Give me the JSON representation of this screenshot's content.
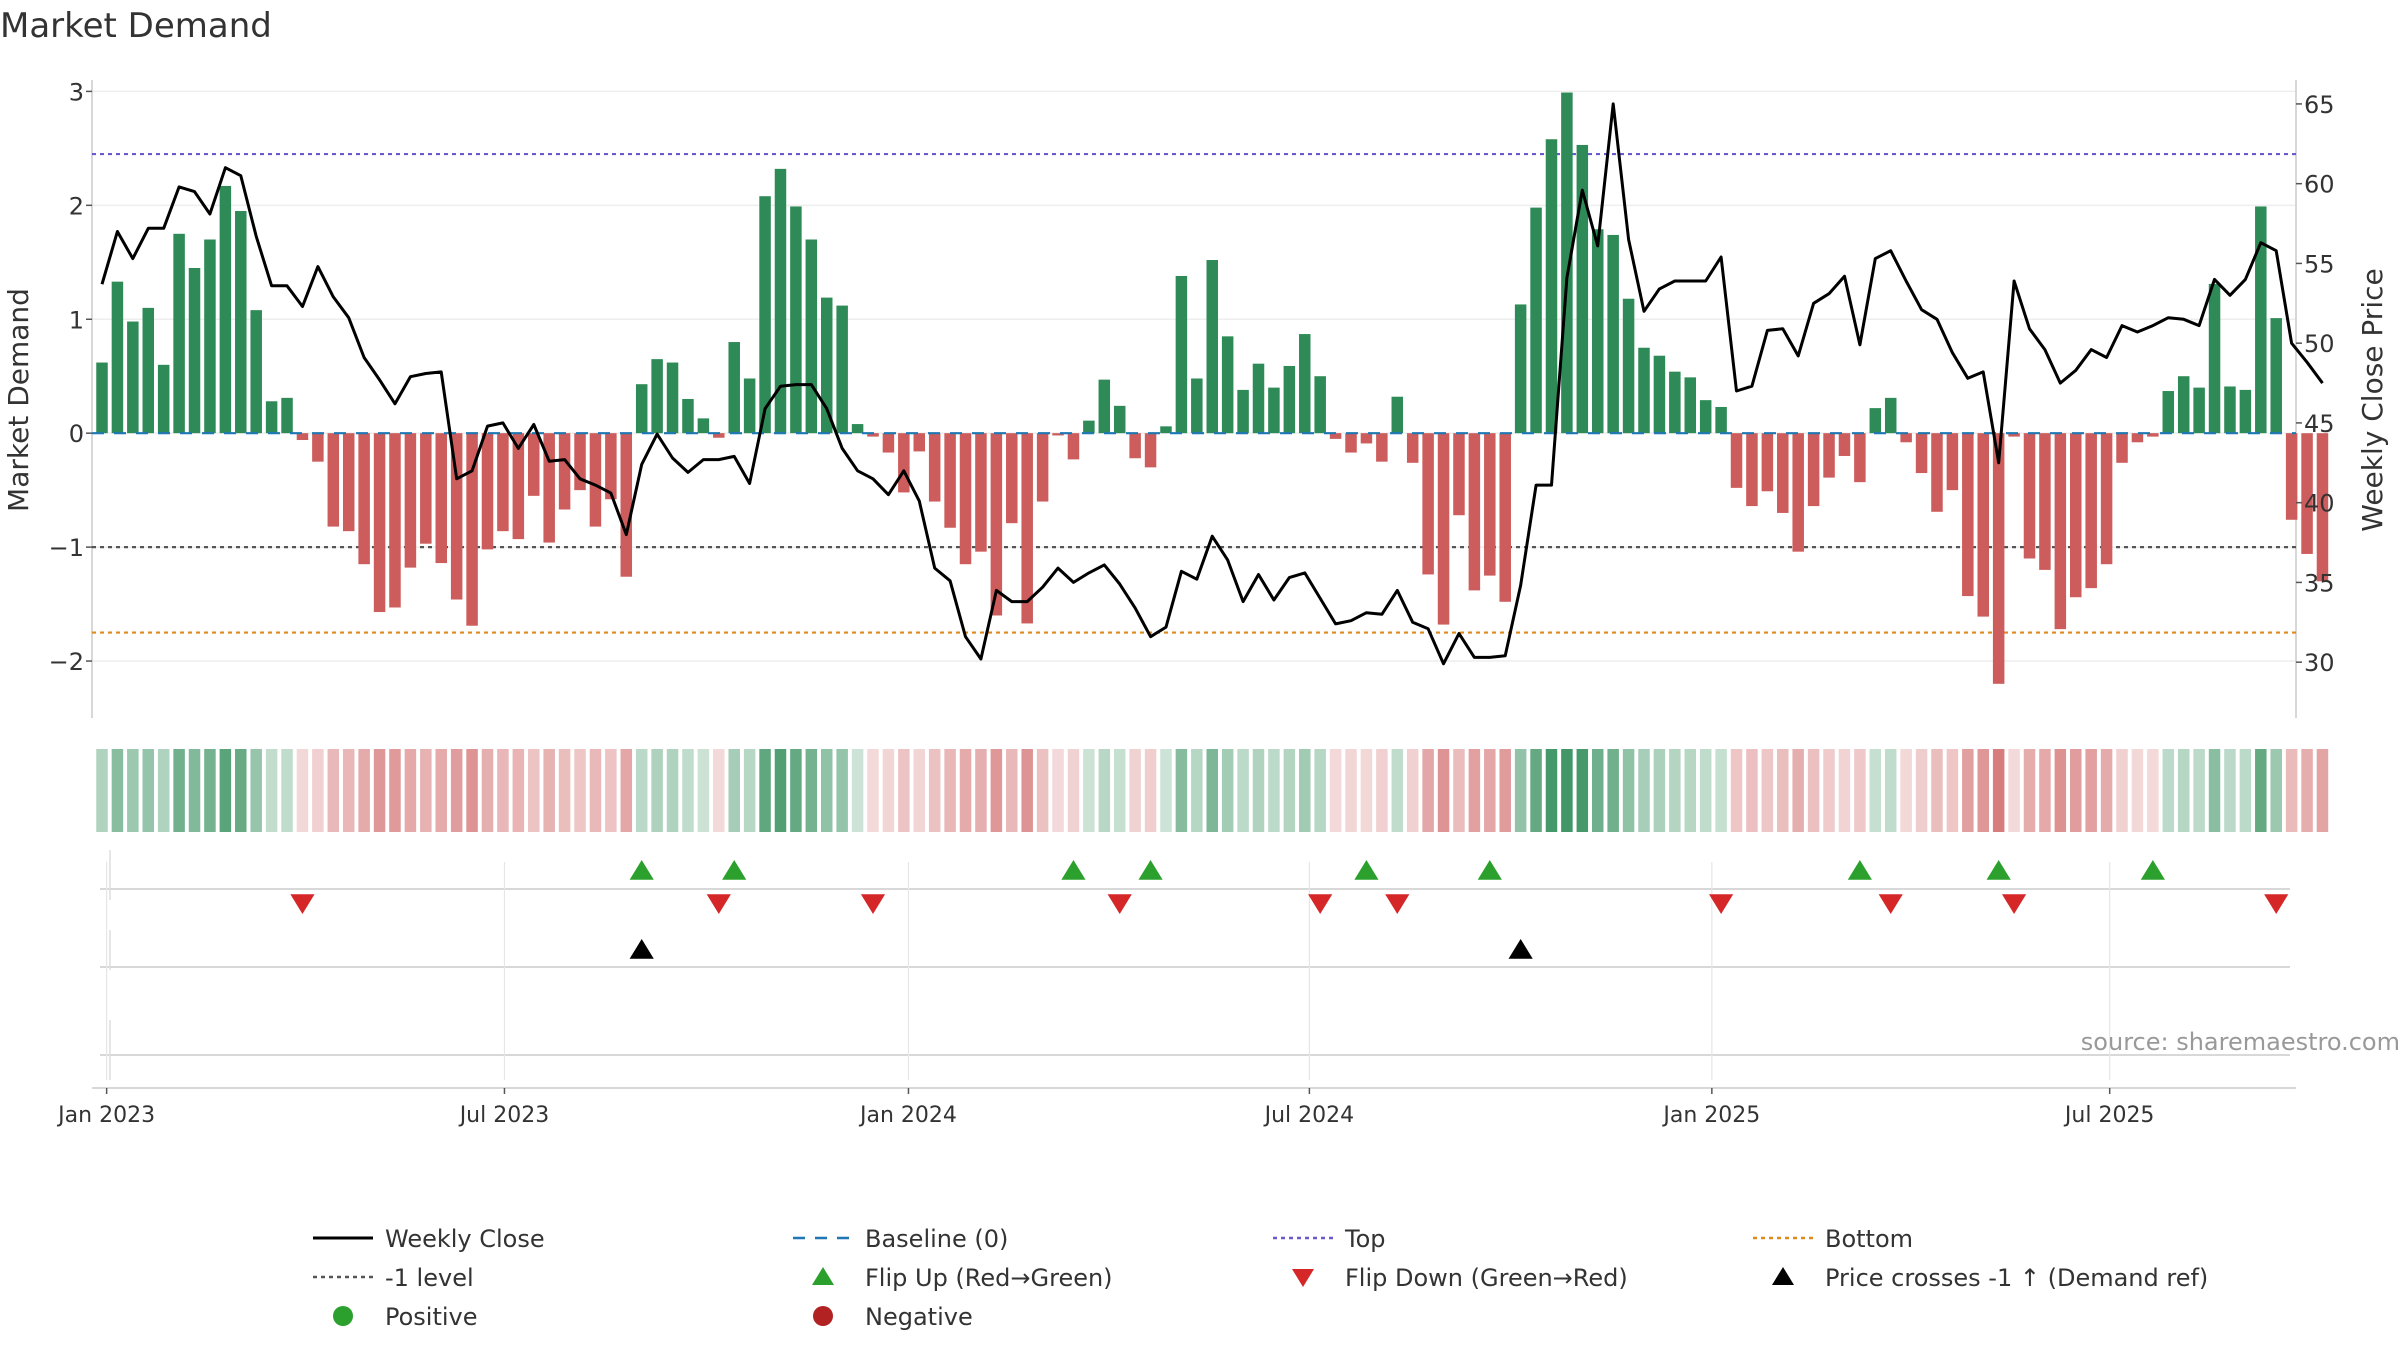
{
  "chart_data": {
    "type": "bar",
    "title": "Market Demand",
    "ylabel": "Market Demand",
    "y2label": "Weekly Close Price",
    "ylim": [
      -2.5,
      3.1
    ],
    "y2lim": [
      26.5,
      66.5
    ],
    "yticks": [
      3,
      2,
      1,
      0,
      -1,
      -2
    ],
    "ytick_labels": [
      "3",
      "2",
      "1",
      "0",
      "−1",
      "−2"
    ],
    "y2ticks": [
      65,
      60,
      55,
      50,
      45,
      40,
      35,
      30
    ],
    "y2tick_labels": [
      "65",
      "60",
      "55",
      "50",
      "45",
      "40",
      "35",
      "30"
    ],
    "xtick_weeks": [
      0.3,
      26.1,
      52.3,
      78.3,
      104.4,
      130.2
    ],
    "xtick_labels": [
      "Jan 2023",
      "Jul 2023",
      "Jan 2024",
      "Jul 2024",
      "Jan 2025",
      "Jul 2025"
    ],
    "reference_lines": {
      "top": 2.45,
      "minus_one": -1.0,
      "bottom": -1.75,
      "baseline": 0
    },
    "demand": [
      0.62,
      1.33,
      0.98,
      1.1,
      0.6,
      1.75,
      1.45,
      1.7,
      2.17,
      1.95,
      1.08,
      0.28,
      0.31,
      -0.06,
      -0.25,
      -0.82,
      -0.86,
      -1.15,
      -1.57,
      -1.53,
      -1.18,
      -0.97,
      -1.14,
      -1.46,
      -1.69,
      -1.02,
      -0.86,
      -0.93,
      -0.55,
      -0.96,
      -0.67,
      -0.5,
      -0.82,
      -0.58,
      -1.26,
      0.43,
      0.65,
      0.62,
      0.3,
      0.13,
      -0.04,
      0.8,
      0.48,
      2.08,
      2.32,
      1.99,
      1.7,
      1.19,
      1.12,
      0.08,
      -0.03,
      -0.17,
      -0.52,
      -0.16,
      -0.6,
      -0.83,
      -1.15,
      -1.04,
      -1.6,
      -0.79,
      -1.67,
      -0.6,
      -0.02,
      -0.23,
      0.11,
      0.47,
      0.24,
      -0.22,
      -0.3,
      0.06,
      1.38,
      0.48,
      1.52,
      0.85,
      0.38,
      0.61,
      0.4,
      0.59,
      0.87,
      0.5,
      -0.05,
      -0.17,
      -0.09,
      -0.25,
      0.32,
      -0.26,
      -1.24,
      -1.68,
      -0.72,
      -1.38,
      -1.25,
      -1.48,
      1.13,
      1.98,
      2.58,
      2.99,
      2.53,
      1.79,
      1.74,
      1.18,
      0.75,
      0.68,
      0.54,
      0.49,
      0.29,
      0.23,
      -0.48,
      -0.64,
      -0.51,
      -0.7,
      -1.04,
      -0.64,
      -0.39,
      -0.2,
      -0.43,
      0.22,
      0.31,
      -0.08,
      -0.35,
      -0.69,
      -0.5,
      -1.43,
      -1.61,
      -2.2,
      -0.03,
      -1.1,
      -1.2,
      -1.72,
      -1.44,
      -1.36,
      -1.15,
      -0.26,
      -0.08,
      -0.03,
      0.37,
      0.5,
      0.4,
      1.31,
      0.41,
      0.38,
      1.99,
      1.01,
      -0.76,
      -1.06,
      -1.3
    ],
    "weekly_close": [
      53.7,
      57.0,
      55.3,
      57.2,
      57.2,
      59.8,
      59.5,
      58.1,
      61.0,
      60.5,
      56.7,
      53.6,
      53.6,
      52.3,
      54.8,
      52.9,
      51.6,
      49.1,
      47.7,
      46.2,
      47.9,
      48.1,
      48.2,
      41.5,
      42.0,
      44.8,
      45.0,
      43.4,
      44.9,
      42.6,
      42.7,
      41.5,
      41.1,
      40.6,
      38.0,
      42.4,
      44.3,
      42.8,
      41.9,
      42.7,
      42.7,
      42.9,
      41.2,
      45.9,
      47.3,
      47.4,
      47.4,
      45.9,
      43.4,
      42.0,
      41.5,
      40.5,
      42.0,
      40.1,
      35.9,
      35.1,
      31.6,
      30.2,
      34.5,
      33.8,
      33.8,
      34.7,
      35.9,
      35.0,
      35.6,
      36.1,
      34.9,
      33.4,
      31.6,
      32.2,
      35.7,
      35.2,
      37.9,
      36.4,
      33.8,
      35.5,
      33.9,
      35.3,
      35.6,
      34.0,
      32.4,
      32.6,
      33.1,
      33.0,
      34.5,
      32.5,
      32.1,
      29.9,
      31.8,
      30.3,
      30.3,
      30.4,
      34.8,
      41.1,
      41.1,
      54.1,
      59.6,
      56.1,
      65.0,
      56.5,
      52.0,
      53.4,
      53.9,
      53.9,
      53.9,
      55.4,
      47.0,
      47.3,
      50.8,
      50.9,
      49.2,
      52.5,
      53.1,
      54.2,
      49.9,
      55.3,
      55.8,
      53.9,
      52.1,
      51.5,
      49.4,
      47.8,
      48.2,
      42.5,
      53.9,
      50.9,
      49.6,
      47.5,
      48.3,
      49.6,
      49.1,
      51.1,
      50.7,
      51.1,
      51.6,
      51.5,
      51.1,
      54.0,
      53.0,
      54.0,
      56.3,
      55.8,
      50.0,
      48.8,
      47.5
    ],
    "flip_up_weeks": [
      35,
      41,
      63,
      68,
      82,
      90,
      114,
      123,
      133
    ],
    "flip_down_weeks": [
      13,
      40,
      50,
      66,
      79,
      84,
      105,
      116,
      124,
      141
    ],
    "price_cross_weeks": [
      35,
      92
    ],
    "source_text": "source: sharemaestro.com",
    "legend": [
      {
        "key": "weekly_close",
        "label": "Weekly Close"
      },
      {
        "key": "baseline",
        "label": "Baseline (0)"
      },
      {
        "key": "top",
        "label": "Top"
      },
      {
        "key": "bottom",
        "label": "Bottom"
      },
      {
        "key": "minus_one",
        "label": "-1 level"
      },
      {
        "key": "flip_up",
        "label": "Flip Up (Red→Green)"
      },
      {
        "key": "flip_down",
        "label": "Flip Down (Green→Red)"
      },
      {
        "key": "price_cross",
        "label": "Price crosses -1 ↑ (Demand ref)"
      },
      {
        "key": "positive",
        "label": "Positive"
      },
      {
        "key": "negative",
        "label": "Negative"
      }
    ]
  },
  "colors": {
    "positive_bar": "#2e8b57",
    "negative_bar": "#cd5c5c",
    "close_line": "#000000",
    "baseline": "#1f77b4",
    "top": "#6a5acd",
    "minus_one": "#555555",
    "bottom": "#e08a1e",
    "flip_up": "#2ca02c",
    "flip_down": "#d62728",
    "cross": "#000000",
    "positive_dot": "#2ca02c",
    "negative_dot": "#b22222"
  }
}
